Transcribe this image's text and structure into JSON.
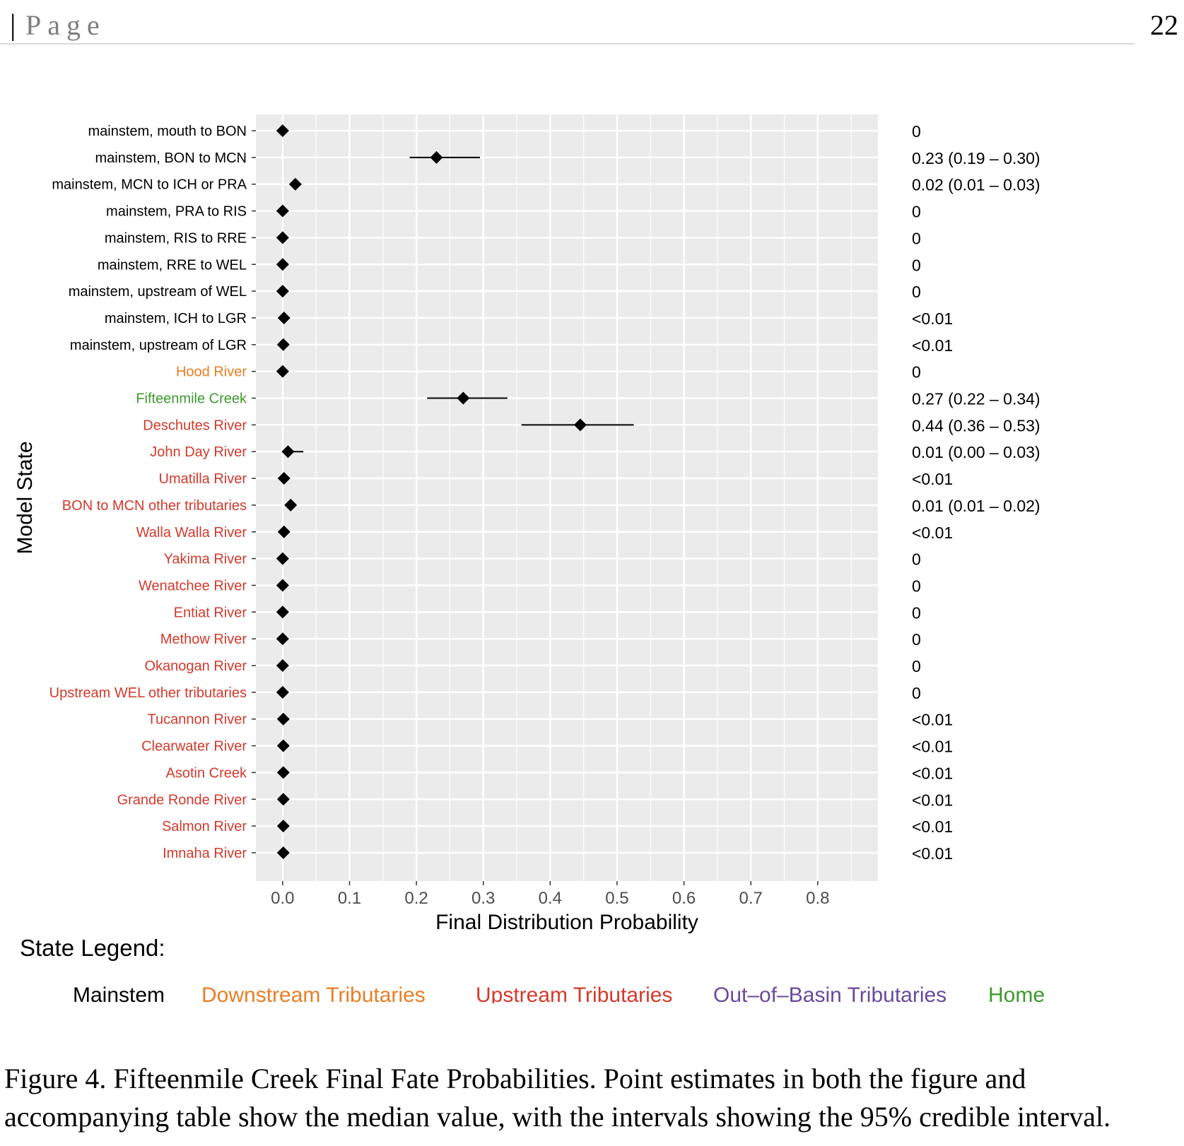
{
  "page_header": {
    "bar": "|",
    "label": "Page",
    "page_number": "22"
  },
  "caption": "Figure 4. Fifteenmile Creek Final Fate Probabilities. Point estimates in both the figure and accompanying table show the median value, with the intervals showing the 95% credible interval.",
  "colors": {
    "mainstem": "#000000",
    "downstream": "#E87E24",
    "upstream": "#D33A2C",
    "out_of_basin": "#6A4A9C",
    "home": "#3E9A2E",
    "panel_bg": "#EBEBEB",
    "grid": "#FFFFFF"
  },
  "chart_data": {
    "type": "scatter",
    "subtype": "point-range (dot plot with 95% credible intervals)",
    "xlabel": "Final Distribution Probability",
    "ylabel": "Model State",
    "xlim": [
      -0.04,
      0.89
    ],
    "x_ticks": [
      0.0,
      0.1,
      0.2,
      0.3,
      0.4,
      0.5,
      0.6,
      0.7,
      0.8
    ],
    "x_tick_labels": [
      "0.0",
      "0.1",
      "0.2",
      "0.3",
      "0.4",
      "0.5",
      "0.6",
      "0.7",
      "0.8"
    ],
    "grid": true,
    "legend_title": "State Legend:",
    "legend_position": "bottom",
    "legend": [
      {
        "label": "Mainstem",
        "group": "mainstem"
      },
      {
        "label": "Downstream Tributaries",
        "group": "downstream"
      },
      {
        "label": "Upstream Tributaries",
        "group": "upstream"
      },
      {
        "label": "Out–of–Basin Tributaries",
        "group": "out_of_basin"
      },
      {
        "label": "Home",
        "group": "home"
      }
    ],
    "states": [
      {
        "label": "mainstem, mouth to BON",
        "group": "mainstem",
        "median": 0.0,
        "lower": 0.0,
        "upper": 0.0,
        "table": "0"
      },
      {
        "label": "mainstem, BON to MCN",
        "group": "mainstem",
        "median": 0.23,
        "lower": 0.19,
        "upper": 0.295,
        "table": "0.23 (0.19 – 0.30)"
      },
      {
        "label": "mainstem, MCN to ICH or PRA",
        "group": "mainstem",
        "median": 0.019,
        "lower": 0.012,
        "upper": 0.027,
        "table": "0.02 (0.01 – 0.03)"
      },
      {
        "label": "mainstem, PRA to RIS",
        "group": "mainstem",
        "median": 0.0,
        "lower": 0.0,
        "upper": 0.0,
        "table": "0"
      },
      {
        "label": "mainstem, RIS to RRE",
        "group": "mainstem",
        "median": 0.0,
        "lower": 0.0,
        "upper": 0.0,
        "table": "0"
      },
      {
        "label": "mainstem, RRE to WEL",
        "group": "mainstem",
        "median": 0.0,
        "lower": 0.0,
        "upper": 0.0,
        "table": "0"
      },
      {
        "label": "mainstem, upstream of WEL",
        "group": "mainstem",
        "median": 0.0,
        "lower": 0.0,
        "upper": 0.0,
        "table": "0"
      },
      {
        "label": "mainstem, ICH to LGR",
        "group": "mainstem",
        "median": 0.002,
        "lower": 0.0,
        "upper": 0.006,
        "table": "<0.01"
      },
      {
        "label": "mainstem, upstream of LGR",
        "group": "mainstem",
        "median": 0.001,
        "lower": 0.0,
        "upper": 0.005,
        "table": "<0.01"
      },
      {
        "label": "Hood River",
        "group": "downstream",
        "median": 0.0,
        "lower": 0.0,
        "upper": 0.0,
        "table": "0"
      },
      {
        "label": "Fifteenmile Creek",
        "group": "home",
        "median": 0.27,
        "lower": 0.216,
        "upper": 0.336,
        "table": "0.27 (0.22 – 0.34)"
      },
      {
        "label": "Deschutes River",
        "group": "upstream",
        "median": 0.445,
        "lower": 0.357,
        "upper": 0.525,
        "table": "0.44 (0.36 – 0.53)"
      },
      {
        "label": "John Day River",
        "group": "upstream",
        "median": 0.008,
        "lower": 0.001,
        "upper": 0.031,
        "table": "0.01 (0.00 – 0.03)"
      },
      {
        "label": "Umatilla River",
        "group": "upstream",
        "median": 0.002,
        "lower": 0.0,
        "upper": 0.006,
        "table": "<0.01"
      },
      {
        "label": "BON to MCN other tributaries",
        "group": "upstream",
        "median": 0.012,
        "lower": 0.006,
        "upper": 0.02,
        "table": "0.01 (0.01 – 0.02)"
      },
      {
        "label": "Walla Walla River",
        "group": "upstream",
        "median": 0.002,
        "lower": 0.0,
        "upper": 0.006,
        "table": "<0.01"
      },
      {
        "label": "Yakima River",
        "group": "upstream",
        "median": 0.0,
        "lower": 0.0,
        "upper": 0.0,
        "table": "0"
      },
      {
        "label": "Wenatchee River",
        "group": "upstream",
        "median": 0.0,
        "lower": 0.0,
        "upper": 0.0,
        "table": "0"
      },
      {
        "label": "Entiat River",
        "group": "upstream",
        "median": 0.0,
        "lower": 0.0,
        "upper": 0.0,
        "table": "0"
      },
      {
        "label": "Methow River",
        "group": "upstream",
        "median": 0.0,
        "lower": 0.0,
        "upper": 0.0,
        "table": "0"
      },
      {
        "label": "Okanogan River",
        "group": "upstream",
        "median": 0.0,
        "lower": 0.0,
        "upper": 0.0,
        "table": "0"
      },
      {
        "label": "Upstream WEL other tributaries",
        "group": "upstream",
        "median": 0.0,
        "lower": 0.0,
        "upper": 0.0,
        "table": "0"
      },
      {
        "label": "Tucannon River",
        "group": "upstream",
        "median": 0.001,
        "lower": 0.0,
        "upper": 0.005,
        "table": "<0.01"
      },
      {
        "label": "Clearwater River",
        "group": "upstream",
        "median": 0.001,
        "lower": 0.0,
        "upper": 0.005,
        "table": "<0.01"
      },
      {
        "label": "Asotin Creek",
        "group": "upstream",
        "median": 0.001,
        "lower": 0.0,
        "upper": 0.005,
        "table": "<0.01"
      },
      {
        "label": "Grande Ronde River",
        "group": "upstream",
        "median": 0.001,
        "lower": 0.0,
        "upper": 0.005,
        "table": "<0.01"
      },
      {
        "label": "Salmon River",
        "group": "upstream",
        "median": 0.001,
        "lower": 0.0,
        "upper": 0.005,
        "table": "<0.01"
      },
      {
        "label": "Imnaha River",
        "group": "upstream",
        "median": 0.001,
        "lower": 0.0,
        "upper": 0.005,
        "table": "<0.01"
      }
    ]
  }
}
